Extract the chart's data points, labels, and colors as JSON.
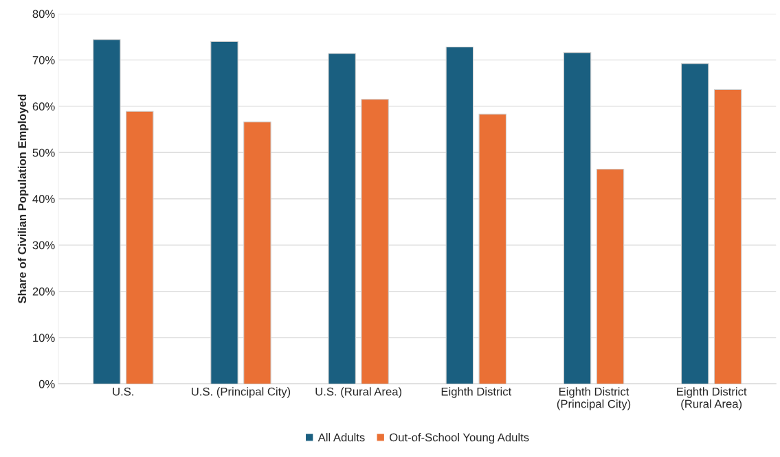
{
  "chart_data": {
    "type": "bar",
    "ylabel": "Share of Civilian Population Employed",
    "categories": [
      "U.S.",
      "U.S. (Principal City)",
      "U.S. (Rural Area)",
      "Eighth District",
      "Eighth District\n(Principal City)",
      "Eighth District\n(Rural Area)"
    ],
    "series": [
      {
        "name": "All Adults",
        "color": "#1a5f80",
        "values": [
          74.4,
          74.0,
          71.4,
          72.8,
          71.6,
          69.2
        ]
      },
      {
        "name": "Out-of-School Young Adults",
        "color": "#ea7035",
        "values": [
          58.9,
          56.6,
          61.5,
          58.3,
          46.4,
          63.6
        ]
      }
    ],
    "ylim": [
      0,
      80
    ],
    "yticks": [
      {
        "value": 0,
        "label": "0%"
      },
      {
        "value": 10,
        "label": "10%"
      },
      {
        "value": 20,
        "label": "20%"
      },
      {
        "value": 30,
        "label": "30%"
      },
      {
        "value": 40,
        "label": "40%"
      },
      {
        "value": 50,
        "label": "50%"
      },
      {
        "value": 60,
        "label": "60%"
      },
      {
        "value": 70,
        "label": "70%"
      },
      {
        "value": 80,
        "label": "80%"
      }
    ],
    "grid": "y",
    "legend": "bottom"
  }
}
